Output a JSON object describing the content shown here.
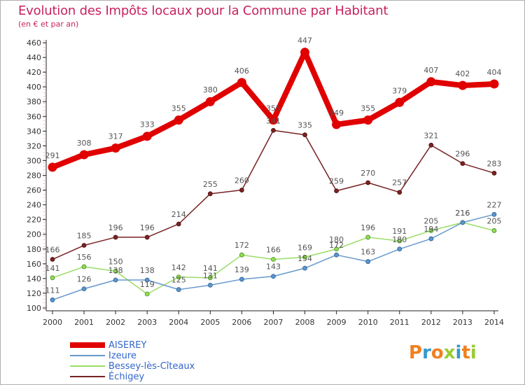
{
  "title": "Evolution des Impôts locaux pour la Commune par Habitant",
  "subtitle": "(en € et par an)",
  "chart_data": {
    "type": "line",
    "title": "Evolution des Impôts locaux pour la Commune par Habitant",
    "subtitle": "(en € et par an)",
    "xlabel": "",
    "ylabel": "",
    "x": [
      2000,
      2001,
      2002,
      2003,
      2004,
      2005,
      2006,
      2007,
      2008,
      2009,
      2010,
      2011,
      2012,
      2013,
      2014
    ],
    "ylim": [
      100,
      460
    ],
    "yticks": [
      100,
      120,
      140,
      160,
      180,
      200,
      220,
      240,
      260,
      280,
      300,
      320,
      340,
      360,
      380,
      400,
      420,
      440,
      460
    ],
    "grid": false,
    "legend_position": "bottom-left",
    "series": [
      {
        "name": "AISEREY",
        "color": "#e00000",
        "values": [
          291,
          308,
          317,
          333,
          355,
          380,
          406,
          355,
          447,
          349,
          355,
          379,
          407,
          402,
          404
        ]
      },
      {
        "name": "Izeure",
        "color": "#6699cc",
        "values": [
          111,
          126,
          138,
          138,
          125,
          131,
          139,
          143,
          154,
          172,
          163,
          180,
          194,
          216,
          227
        ]
      },
      {
        "name": "Bessey-lès-Cîteaux",
        "color": "#99dd66",
        "values": [
          141,
          156,
          150,
          119,
          142,
          141,
          172,
          166,
          169,
          180,
          196,
          191,
          205,
          216,
          205
        ]
      },
      {
        "name": "Échigey",
        "color": "#772222",
        "values": [
          166,
          185,
          196,
          196,
          214,
          255,
          260,
          341,
          335,
          259,
          270,
          257,
          321,
          296,
          283
        ]
      }
    ]
  },
  "logo": {
    "text": "Proxiti",
    "colors": [
      "#f08020",
      "#3399cc",
      "#f08020",
      "#99cc33",
      "#3399cc",
      "#f08020",
      "#99cc33"
    ]
  }
}
